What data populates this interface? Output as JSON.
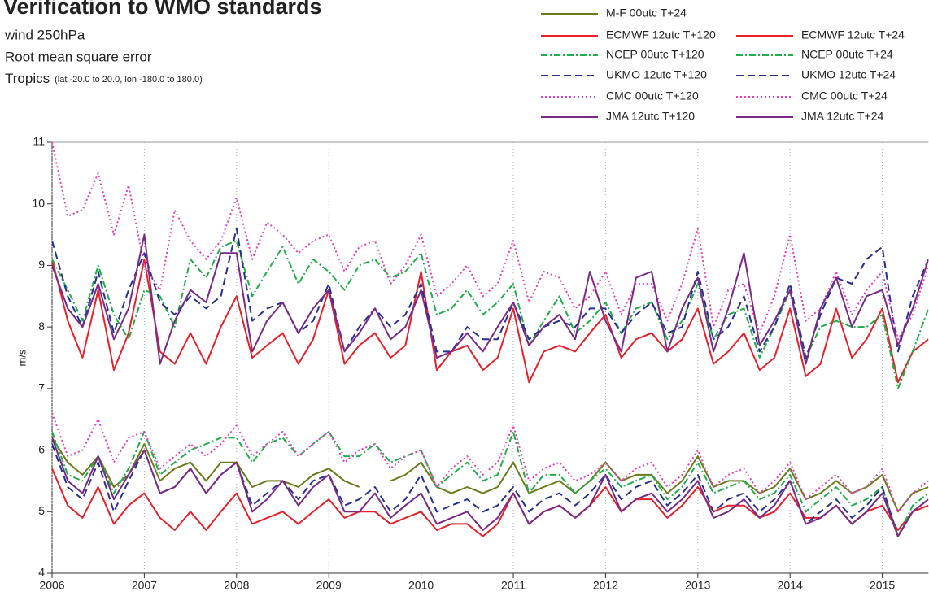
{
  "chart_data": {
    "type": "line",
    "title": "Verification to WMO standards",
    "subtitles": [
      "wind 250hPa",
      "Root mean square error"
    ],
    "region": "Tropics",
    "region_detail": "(lat -20.0 to 20.0, lon -180.0 to 180.0)",
    "y_label": "m/s",
    "xlim": [
      2006,
      2015.5
    ],
    "xticks": [
      2006,
      2007,
      2008,
      2009,
      2010,
      2011,
      2012,
      2013,
      2014,
      2015
    ],
    "ylim": [
      4,
      11
    ],
    "yticks": [
      4,
      5,
      6,
      7,
      8,
      9,
      10,
      11
    ],
    "grid": true,
    "legend": "top-right",
    "x": [
      2006,
      2006.17,
      2006.33,
      2006.5,
      2006.67,
      2006.83,
      2007,
      2007.17,
      2007.33,
      2007.5,
      2007.67,
      2007.83,
      2008,
      2008.17,
      2008.33,
      2008.5,
      2008.67,
      2008.83,
      2009,
      2009.17,
      2009.33,
      2009.5,
      2009.67,
      2009.83,
      2010,
      2010.17,
      2010.33,
      2010.5,
      2010.67,
      2010.83,
      2011,
      2011.17,
      2011.33,
      2011.5,
      2011.67,
      2011.83,
      2012,
      2012.17,
      2012.33,
      2012.5,
      2012.67,
      2012.83,
      2013,
      2013.17,
      2013.33,
      2013.5,
      2013.67,
      2013.83,
      2014,
      2014.17,
      2014.33,
      2014.5,
      2014.67,
      2014.83,
      2015,
      2015.17,
      2015.33,
      2015.5
    ],
    "series": [
      {
        "name": "M-F 00utc T+24",
        "color": "#6b7a1a",
        "style": "solid",
        "values": [
          6.2,
          5.8,
          5.6,
          5.9,
          5.4,
          5.6,
          6.1,
          5.5,
          5.7,
          5.8,
          5.5,
          5.8,
          5.8,
          5.4,
          5.5,
          5.5,
          5.4,
          5.6,
          5.7,
          5.5,
          5.4,
          null,
          5.5,
          5.6,
          5.8,
          5.4,
          5.3,
          5.4,
          5.3,
          5.4,
          5.8,
          5.3,
          5.4,
          5.5,
          5.3,
          5.5,
          5.8,
          5.5,
          5.6,
          5.6,
          5.3,
          5.5,
          5.9,
          5.4,
          5.5,
          5.5,
          5.3,
          5.4,
          5.7,
          5.2,
          5.3,
          5.5,
          5.3,
          5.4,
          5.6,
          5.0,
          5.3,
          5.4
        ]
      },
      {
        "name": "ECMWF 12utc T+120",
        "color": "#e8202a",
        "style": "solid",
        "values": [
          9.1,
          8.1,
          7.5,
          8.6,
          7.3,
          7.9,
          9.1,
          7.6,
          7.4,
          7.9,
          7.4,
          8.0,
          8.5,
          7.5,
          7.7,
          7.9,
          7.4,
          7.8,
          8.6,
          7.4,
          7.7,
          7.9,
          7.5,
          7.7,
          8.9,
          7.3,
          7.6,
          7.7,
          7.3,
          7.5,
          8.3,
          7.1,
          7.6,
          7.7,
          7.6,
          7.9,
          8.2,
          7.5,
          7.8,
          7.9,
          7.6,
          7.8,
          8.3,
          7.4,
          7.6,
          7.9,
          7.3,
          7.5,
          8.3,
          7.2,
          7.4,
          8.3,
          7.5,
          7.8,
          8.3,
          7.1,
          7.6,
          7.8
        ]
      },
      {
        "name": "ECMWF 12utc T+24",
        "color": "#e8202a",
        "style": "solid",
        "values": [
          5.7,
          5.1,
          4.9,
          5.4,
          4.8,
          5.1,
          5.3,
          4.9,
          4.7,
          5.0,
          4.7,
          5.0,
          5.3,
          4.8,
          4.9,
          5.0,
          4.8,
          5.0,
          5.2,
          4.9,
          5.0,
          5.0,
          4.8,
          4.9,
          5.0,
          4.7,
          4.8,
          4.8,
          4.6,
          4.8,
          5.3,
          4.8,
          5.0,
          5.1,
          4.9,
          5.1,
          5.4,
          5.0,
          5.2,
          5.2,
          4.9,
          5.1,
          5.4,
          5.0,
          5.1,
          5.1,
          4.9,
          5.0,
          5.3,
          4.9,
          4.9,
          5.1,
          4.8,
          5.0,
          5.1,
          4.7,
          5.0,
          5.1
        ]
      },
      {
        "name": "NCEP 00utc T+120",
        "color": "#1fae4a",
        "style": "dash-dot",
        "values": [
          9.1,
          8.6,
          8.1,
          9.0,
          8.2,
          7.8,
          8.6,
          8.5,
          8.0,
          9.1,
          8.8,
          9.3,
          9.4,
          8.5,
          8.9,
          9.3,
          8.7,
          9.1,
          8.9,
          8.6,
          9.0,
          9.1,
          8.8,
          8.9,
          9.2,
          8.2,
          8.3,
          8.6,
          8.2,
          8.4,
          8.7,
          7.7,
          8.1,
          8.5,
          7.9,
          8.1,
          8.4,
          7.9,
          8.3,
          8.4,
          7.8,
          8.1,
          8.7,
          7.8,
          8.2,
          8.3,
          7.5,
          8.0,
          8.6,
          7.5,
          8.0,
          8.1,
          8.0,
          8.0,
          8.2,
          7.0,
          7.6,
          8.3
        ]
      },
      {
        "name": "NCEP 00utc T+24",
        "color": "#1fae4a",
        "style": "dash-dot",
        "values": [
          6.3,
          5.6,
          5.5,
          5.9,
          5.3,
          5.7,
          6.3,
          5.6,
          5.8,
          6.0,
          6.1,
          6.2,
          6.2,
          5.8,
          6.1,
          6.2,
          5.9,
          6.1,
          6.3,
          5.9,
          5.9,
          6.1,
          5.8,
          5.9,
          6.0,
          5.4,
          5.6,
          5.8,
          5.5,
          5.6,
          6.3,
          5.3,
          5.6,
          5.6,
          5.3,
          5.5,
          5.7,
          5.4,
          5.5,
          5.6,
          5.2,
          5.4,
          5.8,
          5.3,
          5.4,
          5.5,
          5.2,
          5.3,
          5.6,
          5.0,
          5.2,
          5.4,
          5.1,
          5.2,
          5.4,
          4.6,
          5.1,
          5.3
        ]
      },
      {
        "name": "UKMO 12utc T+120",
        "color": "#27308f",
        "style": "dashed",
        "values": [
          9.4,
          8.5,
          8.0,
          8.9,
          7.9,
          8.6,
          9.2,
          8.4,
          8.2,
          8.5,
          8.3,
          8.5,
          9.6,
          8.1,
          8.3,
          8.4,
          7.9,
          8.1,
          8.7,
          7.6,
          8.0,
          8.3,
          8.0,
          8.2,
          8.7,
          7.6,
          7.6,
          8.0,
          7.8,
          7.8,
          8.4,
          7.8,
          8.0,
          8.1,
          8.0,
          8.3,
          8.3,
          7.9,
          8.2,
          8.4,
          7.9,
          8.0,
          8.9,
          7.8,
          8.0,
          8.5,
          7.6,
          8.0,
          8.7,
          7.5,
          8.2,
          8.8,
          8.7,
          9.1,
          9.3,
          7.6,
          8.5,
          9.1
        ]
      },
      {
        "name": "UKMO 12utc T+24",
        "color": "#27308f",
        "style": "dashed",
        "values": [
          6.1,
          5.4,
          5.2,
          5.8,
          5.0,
          5.5,
          6.0,
          5.3,
          5.4,
          5.7,
          5.3,
          5.6,
          5.8,
          5.1,
          5.3,
          5.5,
          5.2,
          5.5,
          5.6,
          5.1,
          5.2,
          5.4,
          5.0,
          5.2,
          5.6,
          5.0,
          5.1,
          5.2,
          5.0,
          5.1,
          5.4,
          5.0,
          5.2,
          5.3,
          5.1,
          5.3,
          5.6,
          5.2,
          5.4,
          5.5,
          5.1,
          5.3,
          5.6,
          5.0,
          5.2,
          5.3,
          5.0,
          5.2,
          5.5,
          4.8,
          5.0,
          5.2,
          4.9,
          5.1,
          5.4,
          4.6,
          5.0,
          5.2
        ]
      },
      {
        "name": "CMC 00utc T+120",
        "color": "#e63fb7",
        "style": "dotted",
        "values": [
          11.0,
          9.8,
          9.9,
          10.5,
          9.5,
          10.3,
          9.0,
          8.6,
          9.9,
          9.4,
          9.1,
          9.4,
          10.1,
          9.1,
          9.7,
          9.5,
          9.2,
          9.4,
          9.5,
          8.9,
          9.3,
          9.4,
          8.7,
          9.0,
          9.5,
          8.5,
          8.7,
          9.0,
          8.5,
          8.7,
          9.4,
          8.4,
          8.9,
          8.8,
          8.3,
          8.5,
          8.9,
          8.2,
          8.7,
          8.7,
          8.1,
          8.7,
          9.6,
          8.0,
          8.6,
          8.7,
          7.9,
          8.5,
          9.5,
          8.1,
          8.3,
          8.9,
          8.2,
          8.6,
          8.9,
          7.8,
          8.2,
          9.0
        ]
      },
      {
        "name": "CMC 00utc T+24",
        "color": "#e63fb7",
        "style": "dotted",
        "values": [
          6.6,
          5.9,
          6.0,
          6.5,
          5.8,
          6.2,
          6.3,
          5.7,
          5.9,
          6.1,
          5.9,
          6.1,
          6.4,
          5.9,
          6.1,
          6.3,
          5.9,
          6.1,
          6.3,
          5.8,
          6.0,
          6.1,
          5.7,
          5.9,
          6.0,
          5.4,
          5.7,
          5.9,
          5.6,
          5.8,
          6.4,
          5.5,
          5.7,
          5.8,
          5.5,
          5.6,
          5.8,
          5.5,
          5.7,
          5.8,
          5.4,
          5.6,
          6.0,
          5.4,
          5.6,
          5.7,
          5.3,
          5.5,
          5.8,
          5.2,
          5.4,
          5.6,
          5.3,
          5.4,
          5.7,
          5.0,
          5.3,
          5.5
        ]
      },
      {
        "name": "JMA 12utc T+120",
        "color": "#7a2a86",
        "style": "solid",
        "values": [
          9.0,
          8.3,
          8.0,
          8.7,
          7.8,
          8.3,
          9.5,
          7.4,
          8.1,
          8.6,
          8.4,
          9.2,
          9.2,
          7.6,
          8.1,
          8.4,
          7.9,
          8.3,
          8.6,
          7.6,
          7.9,
          8.3,
          7.8,
          8.0,
          8.6,
          7.5,
          7.6,
          7.9,
          7.6,
          8.0,
          8.4,
          7.7,
          8.0,
          8.2,
          7.8,
          8.9,
          8.1,
          7.6,
          8.8,
          8.9,
          7.6,
          8.3,
          8.8,
          7.6,
          8.3,
          9.2,
          7.7,
          8.1,
          8.6,
          7.4,
          8.3,
          8.8,
          8.0,
          8.5,
          8.6,
          7.7,
          8.3,
          9.1
        ]
      },
      {
        "name": "JMA 12utc T+24",
        "color": "#7a2a86",
        "style": "solid",
        "values": [
          6.2,
          5.5,
          5.3,
          5.9,
          5.2,
          5.6,
          6.0,
          5.3,
          5.4,
          5.7,
          5.3,
          5.6,
          5.8,
          5.0,
          5.2,
          5.5,
          5.1,
          5.4,
          5.6,
          5.0,
          5.0,
          5.3,
          4.9,
          5.1,
          5.3,
          4.8,
          4.9,
          5.0,
          4.7,
          4.9,
          5.3,
          4.8,
          5.0,
          5.1,
          4.9,
          5.1,
          5.6,
          5.0,
          5.2,
          5.3,
          5.0,
          5.2,
          5.5,
          4.9,
          5.0,
          5.2,
          4.9,
          5.1,
          5.5,
          4.8,
          4.9,
          5.1,
          4.8,
          5.0,
          5.3,
          4.6,
          5.0,
          5.2
        ]
      }
    ]
  }
}
